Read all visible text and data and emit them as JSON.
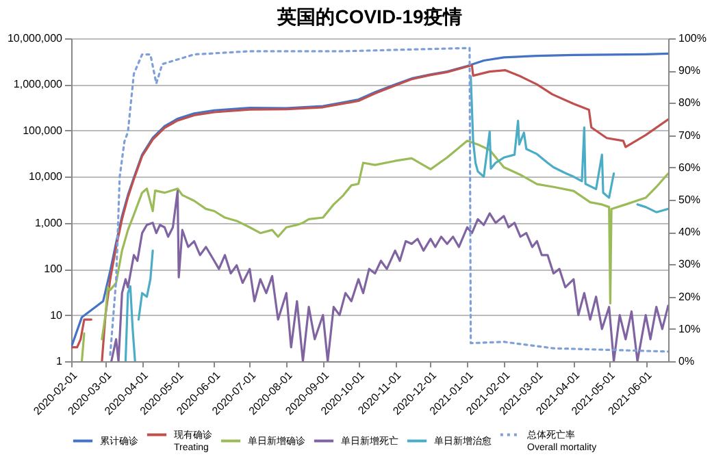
{
  "chart_data": {
    "type": "line",
    "title": "英国的COVID-19疫情",
    "log": "y",
    "grid": "y",
    "legend": "bottom",
    "line_style": "solid",
    "xlim": [
      "2020-02-01",
      "2021-06-20"
    ],
    "xticks": [
      "2020-02-01",
      "2020-03-01",
      "2020-04-01",
      "2020-05-01",
      "2020-06-01",
      "2020-07-01",
      "2020-08-01",
      "2020-09-01",
      "2020-10-01",
      "2020-11-01",
      "2020-12-01",
      "2021-01-01",
      "2021-02-01",
      "2021-03-01",
      "2021-04-01",
      "2021-05-01",
      "2021-06-01"
    ],
    "ylim": [
      1,
      10000000
    ],
    "yticks": [
      {
        "value": 1,
        "label": "1"
      },
      {
        "value": 10,
        "label": "10"
      },
      {
        "value": 100,
        "label": "100"
      },
      {
        "value": 1000,
        "label": "1,000"
      },
      {
        "value": 10000,
        "label": "10,000"
      },
      {
        "value": 100000,
        "label": "100,000"
      },
      {
        "value": 1000000,
        "label": "1,000,000"
      },
      {
        "value": 10000000,
        "label": "10,000,000"
      }
    ],
    "y2lim": [
      0,
      100
    ],
    "y2ticks": [
      {
        "value": 0,
        "label": "0%"
      },
      {
        "value": 10,
        "label": "10%"
      },
      {
        "value": 20,
        "label": "20%"
      },
      {
        "value": 30,
        "label": "30%"
      },
      {
        "value": 40,
        "label": "40%"
      },
      {
        "value": 50,
        "label": "50%"
      },
      {
        "value": 60,
        "label": "60%"
      },
      {
        "value": 70,
        "label": "70%"
      },
      {
        "value": 80,
        "label": "80%"
      },
      {
        "value": 90,
        "label": "90%"
      },
      {
        "value": 100,
        "label": "100%"
      }
    ],
    "series": [
      {
        "name": "累计确诊",
        "color": "#4472c4",
        "x": [
          "2020-02-01",
          "2020-02-10",
          "2020-02-28",
          "2020-03-05",
          "2020-03-10",
          "2020-03-15",
          "2020-03-20",
          "2020-03-25",
          "2020-04-01",
          "2020-04-10",
          "2020-04-20",
          "2020-05-01",
          "2020-05-15",
          "2020-06-01",
          "2020-07-01",
          "2020-08-01",
          "2020-09-01",
          "2020-10-01",
          "2020-10-15",
          "2020-11-01",
          "2020-11-15",
          "2020-12-01",
          "2020-12-15",
          "2021-01-01",
          "2021-01-15",
          "2021-02-01",
          "2021-03-01",
          "2021-04-01",
          "2021-05-01",
          "2021-06-01",
          "2021-06-20"
        ],
        "values": [
          2,
          9,
          20,
          90,
          370,
          1400,
          4000,
          9500,
          30000,
          70000,
          125000,
          180000,
          235000,
          275000,
          312000,
          305000,
          340000,
          470000,
          680000,
          1000000,
          1350000,
          1650000,
          1900000,
          2500000,
          3300000,
          3850000,
          4180000,
          4350000,
          4420000,
          4500000,
          4650000
        ]
      },
      {
        "name": "现有确诊\nTreating",
        "color": "#c0504d",
        "x": [
          "2020-02-01",
          "2020-02-06",
          "2020-02-09",
          "2020-02-12",
          "2020-02-18",
          "2020-02-19",
          "2020-02-27",
          "2020-03-01",
          "2020-03-05",
          "2020-03-10",
          "2020-03-15",
          "2020-03-20",
          "2020-03-25",
          "2020-04-01",
          "2020-04-10",
          "2020-04-20",
          "2020-05-01",
          "2020-05-15",
          "2020-06-01",
          "2020-07-01",
          "2020-08-01",
          "2020-09-01",
          "2020-10-01",
          "2020-10-15",
          "2020-11-01",
          "2020-11-15",
          "2020-12-01",
          "2020-12-15",
          "2021-01-01",
          "2021-01-05",
          "2021-01-06",
          "2021-01-20",
          "2021-02-02",
          "2021-02-15",
          "2021-03-01",
          "2021-03-14",
          "2021-04-01",
          "2021-04-14",
          "2021-04-16",
          "2021-04-29",
          "2021-05-13",
          "2021-05-15",
          "2021-06-01",
          "2021-06-20"
        ],
        "values": [
          2,
          2,
          3,
          8,
          8,
          null,
          1,
          10,
          60,
          300,
          1200,
          3600,
          8800,
          28000,
          64000,
          115000,
          165000,
          215000,
          250000,
          285000,
          290000,
          320000,
          440000,
          640000,
          950000,
          1300000,
          1600000,
          1850000,
          2450000,
          2600000,
          1550000,
          1900000,
          2040000,
          1500000,
          1000000,
          610000,
          380000,
          282000,
          117000,
          69000,
          60000,
          44000,
          80000,
          174000
        ]
      },
      {
        "name": "单日新增确诊",
        "color": "#9bbb59",
        "x": [
          "2020-02-10",
          "2020-02-12",
          "2020-02-13",
          "2020-02-27",
          "2020-03-01",
          "2020-03-03",
          "2020-03-05",
          "2020-03-10",
          "2020-03-15",
          "2020-03-20",
          "2020-03-25",
          "2020-04-01",
          "2020-04-05",
          "2020-04-10",
          "2020-04-12",
          "2020-04-20",
          "2020-05-01",
          "2020-05-05",
          "2020-05-15",
          "2020-05-25",
          "2020-06-01",
          "2020-06-10",
          "2020-06-20",
          "2020-07-01",
          "2020-07-10",
          "2020-07-20",
          "2020-07-25",
          "2020-08-01",
          "2020-08-10",
          "2020-08-15",
          "2020-08-20",
          "2020-09-01",
          "2020-09-10",
          "2020-09-18",
          "2020-09-25",
          "2020-10-01",
          "2020-10-05",
          "2020-10-15",
          "2020-11-01",
          "2020-11-15",
          "2020-12-01",
          "2020-12-15",
          "2021-01-01",
          "2021-01-10",
          "2021-01-20",
          "2021-02-01",
          "2021-02-15",
          "2021-03-01",
          "2021-03-15",
          "2021-04-01",
          "2021-04-15",
          "2021-04-25",
          "2021-05-01",
          "2021-05-02",
          "2021-05-03",
          "2021-05-15",
          "2021-06-01",
          "2021-06-10",
          "2021-06-20"
        ],
        "values": [
          1,
          4,
          null,
          3,
          10,
          40,
          35,
          50,
          250,
          700,
          1500,
          4500,
          5500,
          1800,
          5000,
          4500,
          5500,
          4000,
          3000,
          2000,
          1800,
          1300,
          1100,
          800,
          600,
          700,
          500,
          800,
          900,
          1000,
          1200,
          1300,
          2500,
          3900,
          6500,
          7000,
          20000,
          18000,
          22000,
          25000,
          14500,
          26000,
          60000,
          50000,
          38000,
          16000,
          11000,
          6900,
          6000,
          4900,
          2800,
          2500,
          2200,
          18,
          2000,
          2500,
          3500,
          6000,
          11700
        ]
      },
      {
        "name": "单日新增死亡",
        "color": "#8064a2",
        "x": [
          "2020-03-06",
          "2020-03-10",
          "2020-03-12",
          "2020-03-15",
          "2020-03-18",
          "2020-03-20",
          "2020-03-25",
          "2020-03-28",
          "2020-04-01",
          "2020-04-05",
          "2020-04-10",
          "2020-04-13",
          "2020-04-16",
          "2020-04-20",
          "2020-04-23",
          "2020-04-27",
          "2020-05-01",
          "2020-05-02",
          "2020-05-05",
          "2020-05-10",
          "2020-05-15",
          "2020-05-20",
          "2020-05-25",
          "2020-06-01",
          "2020-06-05",
          "2020-06-10",
          "2020-06-15",
          "2020-06-20",
          "2020-06-25",
          "2020-07-01",
          "2020-07-05",
          "2020-07-10",
          "2020-07-15",
          "2020-07-20",
          "2020-07-25",
          "2020-08-01",
          "2020-08-05",
          "2020-08-10",
          "2020-08-15",
          "2020-08-20",
          "2020-08-25",
          "2020-09-01",
          "2020-09-05",
          "2020-09-10",
          "2020-09-15",
          "2020-09-20",
          "2020-09-25",
          "2020-10-01",
          "2020-10-05",
          "2020-10-10",
          "2020-10-15",
          "2020-10-20",
          "2020-10-25",
          "2020-11-01",
          "2020-11-05",
          "2020-11-10",
          "2020-11-15",
          "2020-11-20",
          "2020-11-25",
          "2020-12-01",
          "2020-12-05",
          "2020-12-10",
          "2020-12-15",
          "2020-12-20",
          "2020-12-25",
          "2021-01-01",
          "2021-01-05",
          "2021-01-10",
          "2021-01-15",
          "2021-01-20",
          "2021-01-25",
          "2021-02-01",
          "2021-02-05",
          "2021-02-10",
          "2021-02-15",
          "2021-02-20",
          "2021-02-25",
          "2021-03-01",
          "2021-03-05",
          "2021-03-10",
          "2021-03-15",
          "2021-03-20",
          "2021-03-25",
          "2021-04-01",
          "2021-04-05",
          "2021-04-10",
          "2021-04-15",
          "2021-04-20",
          "2021-04-25",
          "2021-05-01",
          "2021-05-05",
          "2021-05-10",
          "2021-05-15",
          "2021-05-20",
          "2021-05-25",
          "2021-06-01",
          "2021-06-05",
          "2021-06-10",
          "2021-06-15",
          "2021-06-20"
        ],
        "values": [
          1,
          3,
          1,
          30,
          60,
          40,
          200,
          150,
          600,
          900,
          1000,
          600,
          900,
          800,
          500,
          800,
          4900,
          66,
          700,
          300,
          400,
          200,
          300,
          150,
          100,
          200,
          80,
          120,
          50,
          100,
          20,
          60,
          30,
          70,
          8,
          30,
          2,
          20,
          1,
          15,
          3,
          10,
          1,
          15,
          10,
          30,
          20,
          60,
          30,
          100,
          80,
          150,
          100,
          250,
          150,
          400,
          350,
          450,
          250,
          450,
          300,
          500,
          350,
          500,
          300,
          800,
          600,
          1200,
          900,
          1600,
          1000,
          1400,
          800,
          1000,
          500,
          600,
          300,
          400,
          200,
          200,
          80,
          100,
          40,
          60,
          10,
          30,
          8,
          25,
          5,
          15,
          1,
          10,
          3,
          12,
          1,
          10,
          3,
          15,
          5,
          16
        ]
      },
      {
        "name": "单日新增治愈",
        "color": "#4bacc6",
        "x": [
          "2020-03-18",
          "2020-03-20",
          "2020-03-22",
          "2020-03-24",
          "2020-03-26",
          "2020-03-27",
          "2020-03-29",
          "2020-04-01",
          "2020-04-05",
          "2020-04-08",
          "2020-04-10",
          "2020-04-11",
          "2021-01-04",
          "2021-01-06",
          "2021-01-08",
          "2021-01-10",
          "2021-01-15",
          "2021-01-20",
          "2021-01-21",
          "2021-01-25",
          "2021-02-01",
          "2021-02-10",
          "2021-02-13",
          "2021-02-14",
          "2021-02-18",
          "2021-02-20",
          "2021-03-01",
          "2021-03-10",
          "2021-03-15",
          "2021-03-25",
          "2021-04-01",
          "2021-04-08",
          "2021-04-10",
          "2021-04-11",
          "2021-04-20",
          "2021-04-25",
          "2021-04-26",
          "2021-05-01",
          "2021-05-05",
          "2021-05-06",
          "2021-05-25",
          "2021-06-01",
          "2021-06-10",
          "2021-06-20"
        ],
        "values": [
          1,
          30,
          42,
          5,
          1,
          null,
          8,
          30,
          25,
          60,
          250,
          null,
          1500000,
          60000,
          20000,
          13000,
          10000,
          95000,
          15000,
          20000,
          26000,
          30000,
          163000,
          50000,
          90000,
          40000,
          31000,
          20000,
          16000,
          12000,
          10000,
          8000,
          117000,
          7000,
          5400,
          30000,
          4500,
          3500,
          11700,
          null,
          2500,
          2200,
          1700,
          2000
        ]
      },
      {
        "name": "总体死亡率\nOverall mortality",
        "color": "#7f9fd9",
        "axis": "y2",
        "line_style": "dotted",
        "x": [
          "2020-03-05",
          "2020-03-10",
          "2020-03-13",
          "2020-03-17",
          "2020-03-20",
          "2020-03-25",
          "2020-04-01",
          "2020-04-08",
          "2020-04-13",
          "2020-04-18",
          "2020-05-15",
          "2020-07-01",
          "2020-09-18",
          "2021-01-03",
          "2021-01-04",
          "2021-02-01",
          "2021-03-15",
          "2021-06-20"
        ],
        "values": [
          2,
          25,
          57,
          68,
          71,
          89,
          95,
          95,
          86,
          92,
          95,
          96,
          96,
          97,
          5.6,
          6,
          4,
          3
        ]
      }
    ]
  }
}
